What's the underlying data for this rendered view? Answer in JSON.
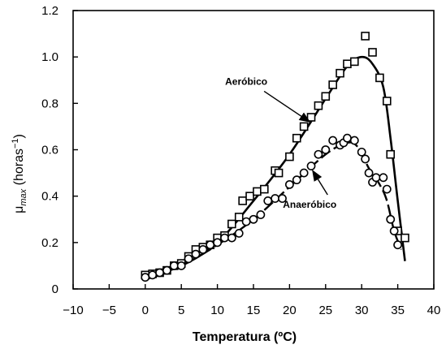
{
  "chart_data": {
    "type": "scatter",
    "xlabel": "Temperatura (ºC)",
    "ylabel_main": "μ",
    "ylabel_sub": "max",
    "ylabel_rest": " (horas",
    "ylabel_sup": "−1",
    "ylabel_close": ")",
    "xlim": [
      -10,
      40
    ],
    "ylim": [
      0,
      1.2
    ],
    "xticks": [
      -10,
      -5,
      0,
      5,
      10,
      15,
      20,
      25,
      30,
      35,
      40
    ],
    "xtick_labels": [
      "−10",
      "−5",
      "0",
      "5",
      "10",
      "15",
      "20",
      "25",
      "30",
      "35",
      "40"
    ],
    "yticks": [
      0,
      0.2,
      0.4,
      0.6,
      0.8,
      1.0,
      1.2
    ],
    "ytick_labels": [
      "0",
      "0.2",
      "0.4",
      "0.6",
      "0.8",
      "1.0",
      "1.2"
    ],
    "grid": false,
    "series": [
      {
        "name": "Aeróbico",
        "marker": "square",
        "points": [
          [
            0,
            0.06
          ],
          [
            1,
            0.065
          ],
          [
            2,
            0.07
          ],
          [
            3,
            0.08
          ],
          [
            4,
            0.1
          ],
          [
            5,
            0.11
          ],
          [
            6,
            0.14
          ],
          [
            7,
            0.17
          ],
          [
            8,
            0.18
          ],
          [
            9,
            0.19
          ],
          [
            10,
            0.22
          ],
          [
            11,
            0.23
          ],
          [
            12,
            0.28
          ],
          [
            13,
            0.31
          ],
          [
            13.5,
            0.38
          ],
          [
            14.5,
            0.4
          ],
          [
            15.5,
            0.42
          ],
          [
            16.5,
            0.43
          ],
          [
            18,
            0.51
          ],
          [
            18.5,
            0.5
          ],
          [
            20,
            0.57
          ],
          [
            21,
            0.65
          ],
          [
            22,
            0.7
          ],
          [
            23,
            0.74
          ],
          [
            24,
            0.79
          ],
          [
            25,
            0.83
          ],
          [
            26,
            0.88
          ],
          [
            27,
            0.93
          ],
          [
            28,
            0.97
          ],
          [
            29,
            0.98
          ],
          [
            30.5,
            1.09
          ],
          [
            31.5,
            1.02
          ],
          [
            32.5,
            0.91
          ],
          [
            33.5,
            0.81
          ],
          [
            34,
            0.58
          ],
          [
            35,
            0.25
          ],
          [
            36,
            0.22
          ]
        ],
        "fit": [
          [
            0,
            0.05
          ],
          [
            5,
            0.1
          ],
          [
            10,
            0.2
          ],
          [
            15,
            0.38
          ],
          [
            20,
            0.58
          ],
          [
            25,
            0.82
          ],
          [
            28,
            0.96
          ],
          [
            30,
            1.0
          ],
          [
            31.5,
            0.97
          ],
          [
            33,
            0.87
          ],
          [
            34,
            0.65
          ],
          [
            35,
            0.38
          ],
          [
            36,
            0.12
          ]
        ]
      },
      {
        "name": "Anaeróbico",
        "marker": "circle",
        "points": [
          [
            0,
            0.05
          ],
          [
            1,
            0.06
          ],
          [
            2,
            0.07
          ],
          [
            3,
            0.08
          ],
          [
            4,
            0.1
          ],
          [
            5,
            0.1
          ],
          [
            6,
            0.13
          ],
          [
            7,
            0.15
          ],
          [
            8,
            0.17
          ],
          [
            9,
            0.19
          ],
          [
            10,
            0.2
          ],
          [
            11,
            0.22
          ],
          [
            12,
            0.22
          ],
          [
            13,
            0.24
          ],
          [
            14,
            0.29
          ],
          [
            15,
            0.3
          ],
          [
            16,
            0.32
          ],
          [
            17,
            0.38
          ],
          [
            18,
            0.39
          ],
          [
            19,
            0.39
          ],
          [
            20,
            0.45
          ],
          [
            21,
            0.47
          ],
          [
            22,
            0.5
          ],
          [
            23,
            0.53
          ],
          [
            24,
            0.58
          ],
          [
            25,
            0.6
          ],
          [
            26,
            0.64
          ],
          [
            27,
            0.62
          ],
          [
            27.5,
            0.63
          ],
          [
            28,
            0.65
          ],
          [
            29,
            0.64
          ],
          [
            30,
            0.59
          ],
          [
            30.5,
            0.56
          ],
          [
            31,
            0.5
          ],
          [
            31.5,
            0.46
          ],
          [
            32,
            0.48
          ],
          [
            33,
            0.48
          ],
          [
            33.5,
            0.43
          ],
          [
            34,
            0.3
          ],
          [
            34.5,
            0.25
          ],
          [
            35,
            0.19
          ]
        ],
        "fit": [
          [
            0,
            0.04
          ],
          [
            5,
            0.1
          ],
          [
            10,
            0.19
          ],
          [
            15,
            0.3
          ],
          [
            20,
            0.44
          ],
          [
            25,
            0.58
          ],
          [
            28,
            0.63
          ],
          [
            29.5,
            0.61
          ],
          [
            31,
            0.52
          ],
          [
            32.5,
            0.45
          ],
          [
            33.5,
            0.38
          ],
          [
            34.5,
            0.25
          ],
          [
            35.5,
            0.17
          ]
        ]
      }
    ],
    "annotations": [
      {
        "text": "Aeróbico",
        "series": "Aeróbico",
        "at": [
          14,
          0.88
        ],
        "arrow_to": [
          22.8,
          0.72
        ]
      },
      {
        "text": "Anaeróbico",
        "series": "Anaeróbico",
        "at": [
          22.8,
          0.35
        ],
        "arrow_to": [
          23.2,
          0.51
        ]
      }
    ]
  }
}
